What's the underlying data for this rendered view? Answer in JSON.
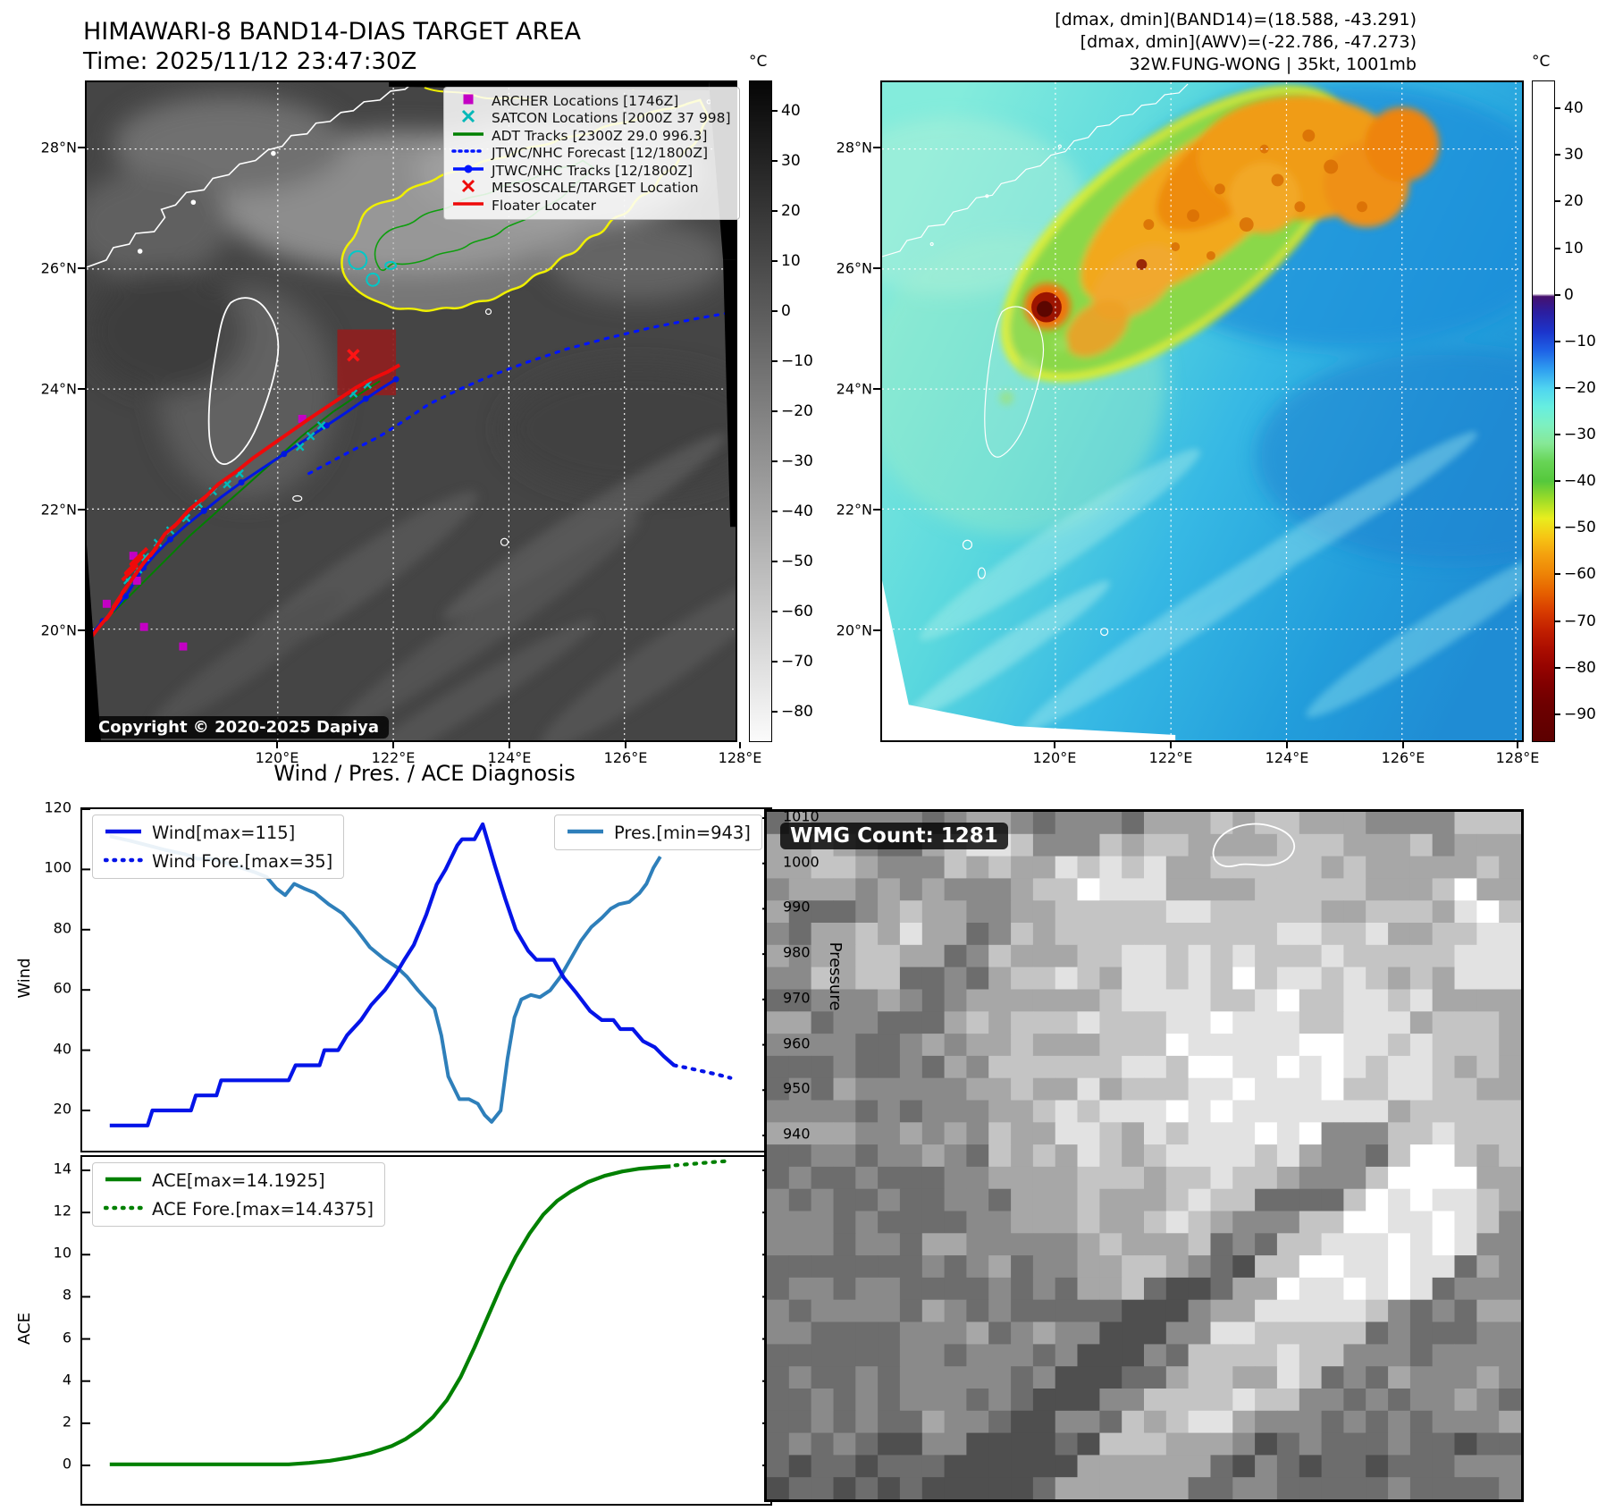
{
  "header": {
    "title_line1": "HIMAWARI-8 BAND14-DIAS TARGET AREA",
    "title_line2": "Time: 2025/11/12 23:47:30Z",
    "info_line1": "[dmax, dmin](BAND14)=(18.588, -43.291)",
    "info_line2": "[dmax, dmin](AWV)=(-22.786, -47.273)",
    "info_line3": "32W.FUNG-WONG | 35kt, 1001mb"
  },
  "band14_map": {
    "legend": [
      {
        "label": "ARCHER Locations [1746Z]",
        "marker": "square",
        "color": "#c400c4"
      },
      {
        "label": "SATCON Locations [2000Z 37 998]",
        "marker": "x",
        "color": "#00b8b8"
      },
      {
        "label": "ADT Tracks [2300Z 29.0 996.3]",
        "marker": "line",
        "color": "#008000"
      },
      {
        "label": "JTWC/NHC Forecast [12/1800Z]",
        "marker": "dotted",
        "color": "#0014ff"
      },
      {
        "label": "JTWC/NHC Tracks [12/1800Z]",
        "marker": "line-dot",
        "color": "#0014ff"
      },
      {
        "label": "MESOSCALE/TARGET Location",
        "marker": "x",
        "color": "#ee0a0a"
      },
      {
        "label": "Floater Locater",
        "marker": "line",
        "color": "#ee0a0a"
      }
    ],
    "copyright": "Copyright © 2020-2025 Dapiya",
    "lat_labels": [
      "28°N",
      "26°N",
      "24°N",
      "22°N",
      "20°N"
    ],
    "lon_labels": [
      "120°E",
      "122°E",
      "124°E",
      "126°E",
      "128°E"
    ],
    "colorbar": {
      "unit": "°C",
      "ticks": [
        "40",
        "30",
        "20",
        "10",
        "0",
        "−10",
        "−20",
        "−30",
        "−40",
        "−50",
        "−60",
        "−70",
        "−80"
      ]
    }
  },
  "awv_map": {
    "lat_labels": [
      "28°N",
      "26°N",
      "24°N",
      "22°N",
      "20°N"
    ],
    "lon_labels": [
      "120°E",
      "122°E",
      "124°E",
      "126°E",
      "128°E"
    ],
    "colorbar": {
      "unit": "°C",
      "ticks": [
        "40",
        "30",
        "20",
        "10",
        "0",
        "−10",
        "−20",
        "−30",
        "−40",
        "−50",
        "−60",
        "−70",
        "−80",
        "−90"
      ]
    }
  },
  "wmg": {
    "count_label": "WMG Count: 1281"
  },
  "chart_data": [
    {
      "type": "line",
      "title": "Wind / Pres. / ACE Diagnosis",
      "ylabel_left": "Wind",
      "ylabel_right": "Pressure",
      "yticks_left": [
        120,
        100,
        80,
        60,
        40,
        20
      ],
      "yticks_right": [
        1010,
        1000,
        990,
        980,
        970,
        960,
        950,
        940
      ],
      "ylim_left": [
        6.6,
        120
      ],
      "ylim_right": [
        936.6,
        1012
      ],
      "xlim": [
        0,
        1
      ],
      "legend_position": [
        "upper left",
        "upper right"
      ],
      "series": [
        {
          "name": "Wind[max=115]",
          "axis": "left",
          "line": "solid",
          "color": "#0414e8",
          "points": [
            [
              0.04,
              15
            ],
            [
              0.095,
              15
            ],
            [
              0.102,
              20
            ],
            [
              0.158,
              20
            ],
            [
              0.165,
              25
            ],
            [
              0.195,
              25
            ],
            [
              0.202,
              30
            ],
            [
              0.3,
              30
            ],
            [
              0.31,
              35
            ],
            [
              0.345,
              35
            ],
            [
              0.352,
              40
            ],
            [
              0.372,
              40
            ],
            [
              0.385,
              45
            ],
            [
              0.405,
              50
            ],
            [
              0.42,
              55
            ],
            [
              0.44,
              60
            ],
            [
              0.455,
              65
            ],
            [
              0.468,
              70
            ],
            [
              0.482,
              75
            ],
            [
              0.5,
              85
            ],
            [
              0.515,
              95
            ],
            [
              0.528,
              100
            ],
            [
              0.545,
              108
            ],
            [
              0.552,
              110
            ],
            [
              0.57,
              110
            ],
            [
              0.582,
              115
            ],
            [
              0.6,
              101
            ],
            [
              0.615,
              90
            ],
            [
              0.63,
              80
            ],
            [
              0.648,
              73
            ],
            [
              0.66,
              70
            ],
            [
              0.685,
              70
            ],
            [
              0.7,
              64
            ],
            [
              0.718,
              59
            ],
            [
              0.738,
              53
            ],
            [
              0.755,
              50
            ],
            [
              0.772,
              50
            ],
            [
              0.782,
              47
            ],
            [
              0.8,
              47
            ],
            [
              0.815,
              43
            ],
            [
              0.832,
              41
            ],
            [
              0.845,
              38
            ],
            [
              0.86,
              35
            ]
          ]
        },
        {
          "name": "Wind Fore.[max=35]",
          "axis": "left",
          "line": "dotted",
          "color": "#0414e8",
          "points": [
            [
              0.86,
              35
            ],
            [
              0.882,
              34
            ],
            [
              0.902,
              33
            ],
            [
              0.922,
              32
            ],
            [
              0.942,
              30.8
            ]
          ]
        },
        {
          "name": "Pres.[min=943]",
          "axis": "right",
          "line": "solid",
          "color": "#2e7fba",
          "points": [
            [
              0.04,
              1006
            ],
            [
              0.07,
              1005
            ],
            [
              0.095,
              1004
            ],
            [
              0.12,
              1003
            ],
            [
              0.15,
              1002
            ],
            [
              0.168,
              1001
            ],
            [
              0.19,
              1001
            ],
            [
              0.212,
              1000
            ],
            [
              0.232,
              999
            ],
            [
              0.252,
              998
            ],
            [
              0.268,
              997
            ],
            [
              0.282,
              994.5
            ],
            [
              0.295,
              993
            ],
            [
              0.308,
              995.5
            ],
            [
              0.322,
              994.5
            ],
            [
              0.338,
              993.5
            ],
            [
              0.358,
              991
            ],
            [
              0.378,
              989
            ],
            [
              0.398,
              985.5
            ],
            [
              0.418,
              981.5
            ],
            [
              0.438,
              979
            ],
            [
              0.458,
              977
            ],
            [
              0.472,
              975
            ],
            [
              0.488,
              972
            ],
            [
              0.5,
              970
            ],
            [
              0.512,
              968
            ],
            [
              0.522,
              962
            ],
            [
              0.532,
              953
            ],
            [
              0.548,
              948
            ],
            [
              0.562,
              948
            ],
            [
              0.575,
              947
            ],
            [
              0.585,
              944.5
            ],
            [
              0.595,
              943
            ],
            [
              0.608,
              945.5
            ],
            [
              0.618,
              957
            ],
            [
              0.628,
              966
            ],
            [
              0.638,
              970
            ],
            [
              0.652,
              971
            ],
            [
              0.665,
              970.5
            ],
            [
              0.68,
              972
            ],
            [
              0.695,
              975
            ],
            [
              0.71,
              979
            ],
            [
              0.725,
              983
            ],
            [
              0.74,
              986
            ],
            [
              0.755,
              988
            ],
            [
              0.768,
              990
            ],
            [
              0.78,
              991
            ],
            [
              0.795,
              991.5
            ],
            [
              0.81,
              993.5
            ],
            [
              0.82,
              995.5
            ],
            [
              0.83,
              999
            ],
            [
              0.84,
              1001.5
            ]
          ]
        }
      ]
    },
    {
      "type": "line",
      "ylabel": "ACE",
      "yticks": [
        14,
        12,
        10,
        8,
        6,
        4,
        2,
        0
      ],
      "ylim": [
        -1.8,
        14.6
      ],
      "xlim": [
        0,
        1
      ],
      "legend_position": [
        "upper left"
      ],
      "series": [
        {
          "name": "ACE[max=14.1925]",
          "line": "solid",
          "color": "#008000",
          "points": [
            [
              0.04,
              0.05
            ],
            [
              0.15,
              0.05
            ],
            [
              0.3,
              0.05
            ],
            [
              0.33,
              0.12
            ],
            [
              0.36,
              0.22
            ],
            [
              0.39,
              0.38
            ],
            [
              0.42,
              0.6
            ],
            [
              0.45,
              0.92
            ],
            [
              0.47,
              1.25
            ],
            [
              0.49,
              1.7
            ],
            [
              0.51,
              2.3
            ],
            [
              0.53,
              3.1
            ],
            [
              0.55,
              4.2
            ],
            [
              0.57,
              5.6
            ],
            [
              0.59,
              7.1
            ],
            [
              0.61,
              8.6
            ],
            [
              0.63,
              9.9
            ],
            [
              0.65,
              11.0
            ],
            [
              0.67,
              11.9
            ],
            [
              0.69,
              12.55
            ],
            [
              0.71,
              13.0
            ],
            [
              0.735,
              13.45
            ],
            [
              0.76,
              13.75
            ],
            [
              0.785,
              13.95
            ],
            [
              0.81,
              14.08
            ],
            [
              0.835,
              14.15
            ],
            [
              0.855,
              14.19
            ]
          ]
        },
        {
          "name": "ACE Fore.[max=14.4375]",
          "line": "dotted",
          "color": "#008000",
          "points": [
            [
              0.862,
              14.24
            ],
            [
              0.888,
              14.31
            ],
            [
              0.913,
              14.38
            ],
            [
              0.938,
              14.44
            ]
          ]
        }
      ]
    }
  ]
}
